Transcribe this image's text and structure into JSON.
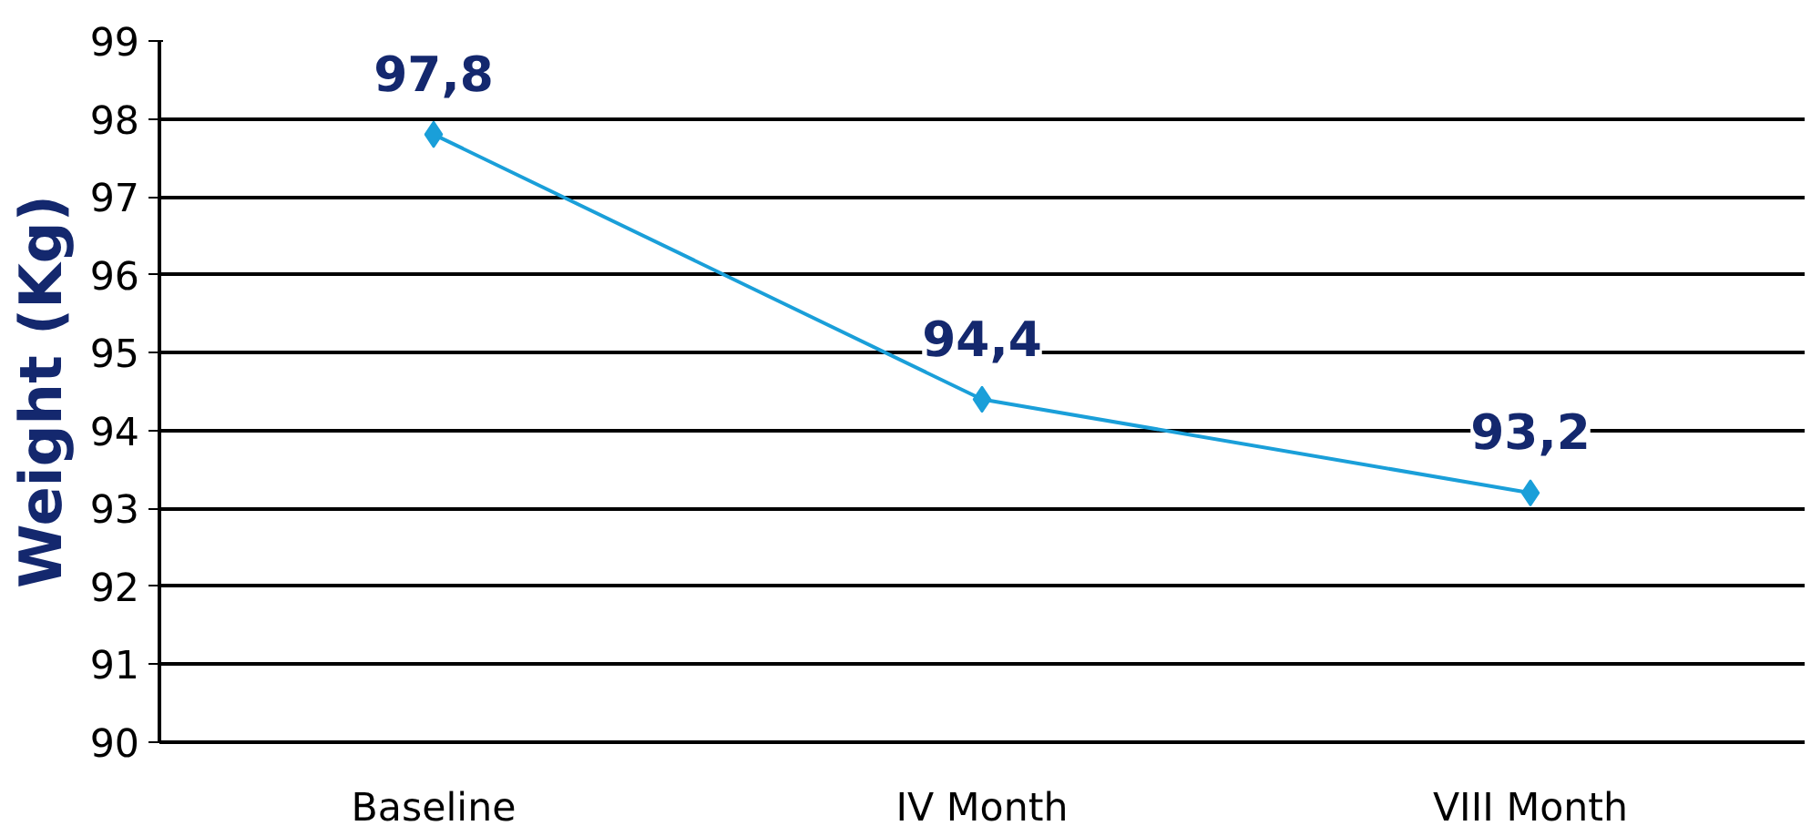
{
  "chart_data": {
    "type": "line",
    "ylabel": "Weight (Kg)",
    "categories": [
      "Baseline",
      "IV Month",
      "VIII Month"
    ],
    "series": [
      {
        "color": "#1a9fd9",
        "values": [
          97.8,
          94.4,
          93.2
        ],
        "value_labels": [
          "97,8",
          "94,4",
          "93,2"
        ]
      }
    ],
    "ylim": [
      90,
      99
    ],
    "yticks": [
      90,
      91,
      92,
      93,
      94,
      95,
      96,
      97,
      98,
      99
    ],
    "grid": "y",
    "marker": "diamond",
    "line_style": "solid"
  }
}
